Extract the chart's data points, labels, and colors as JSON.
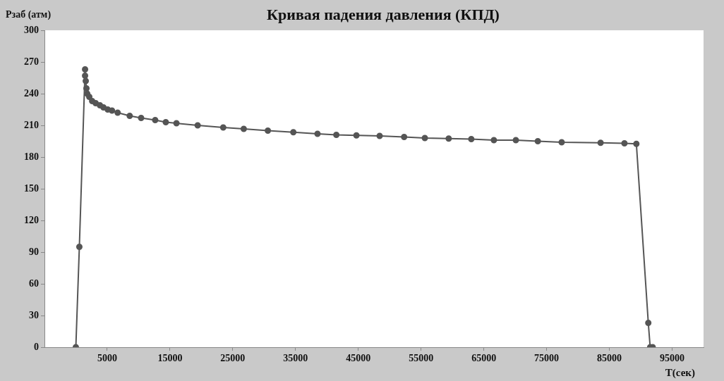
{
  "chart_data": {
    "type": "line",
    "title": "Кривая падения давления (КПД)",
    "xlabel": "T(сек)",
    "ylabel": "Рзаб (атм)",
    "xlim": [
      -5000,
      100000
    ],
    "xticks": [
      5000,
      15000,
      25000,
      35000,
      45000,
      55000,
      65000,
      75000,
      85000,
      95000
    ],
    "ylim": [
      0,
      300
    ],
    "yticks": [
      0,
      30,
      60,
      90,
      120,
      150,
      180,
      210,
      240,
      270,
      300
    ],
    "grid": false,
    "legend": false,
    "marker": "circle",
    "line_style": "solid",
    "series": [
      {
        "color": "#555555",
        "x": [
          0,
          560,
          1470,
          1470,
          1580,
          1690,
          1810,
          2140,
          2600,
          3160,
          3840,
          4400,
          5080,
          5760,
          6660,
          8580,
          10400,
          12640,
          14330,
          16030,
          19410,
          23480,
          26750,
          30590,
          34650,
          38500,
          41500,
          44700,
          48400,
          52300,
          55600,
          59400,
          63000,
          66600,
          70100,
          73600,
          77400,
          83600,
          87400,
          89300,
          91200,
          91500,
          91900
        ],
        "values": [
          0,
          95,
          263,
          257,
          252,
          245,
          240,
          237,
          233,
          231,
          229,
          227,
          225,
          224,
          222,
          219,
          217,
          215,
          213,
          212,
          210,
          208,
          206.7,
          205,
          203.5,
          202,
          201,
          200.5,
          200,
          199,
          198,
          197.5,
          197,
          196,
          196,
          195,
          194,
          193.5,
          193,
          192.5,
          23,
          0,
          0
        ]
      }
    ]
  }
}
